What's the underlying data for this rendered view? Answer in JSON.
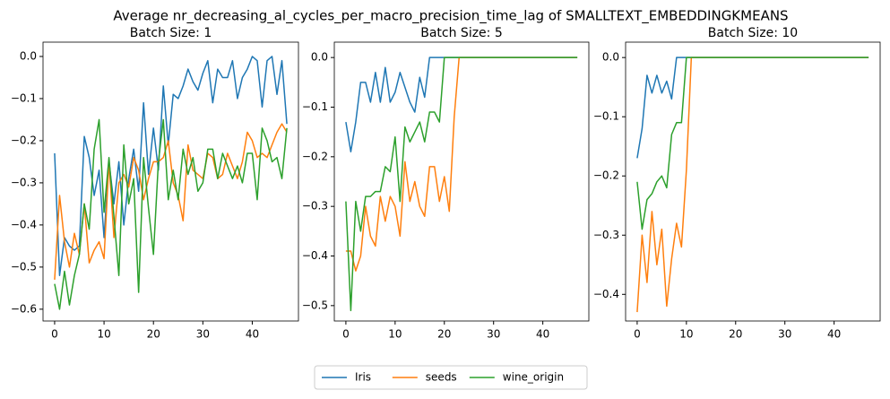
{
  "title": "Average nr_decreasing_al_cycles_per_macro_precision_time_lag of SMALLTEXT_EMBEDDINGKMEANS",
  "legend_position": "lower center",
  "chart_data": [
    {
      "type": "line",
      "title": "Batch Size: 1",
      "x": [
        0,
        1,
        2,
        3,
        4,
        5,
        6,
        7,
        8,
        9,
        10,
        11,
        12,
        13,
        14,
        15,
        16,
        17,
        18,
        19,
        20,
        21,
        22,
        23,
        24,
        25,
        26,
        27,
        28,
        29,
        30,
        31,
        32,
        33,
        34,
        35,
        36,
        37,
        38,
        39,
        40,
        41,
        42,
        43,
        44,
        45,
        46,
        47
      ],
      "xlim": [
        -2.35,
        49.35
      ],
      "xticks": [
        0,
        10,
        20,
        30,
        40
      ],
      "ylim": [
        -0.628,
        0.034
      ],
      "yticks": [
        {
          "value": -0.6,
          "label": "−0.6"
        },
        {
          "value": -0.5,
          "label": "−0.5"
        },
        {
          "value": -0.4,
          "label": "−0.4"
        },
        {
          "value": -0.3,
          "label": "−0.3"
        },
        {
          "value": -0.2,
          "label": "−0.2"
        },
        {
          "value": -0.1,
          "label": "−0.1"
        },
        {
          "value": 0,
          "label": "0.0"
        }
      ],
      "series": [
        {
          "name": "Iris",
          "color": "#1f77b4",
          "values": [
            -0.23,
            -0.52,
            -0.43,
            -0.45,
            -0.46,
            -0.45,
            -0.19,
            -0.24,
            -0.33,
            -0.27,
            -0.43,
            -0.25,
            -0.35,
            -0.25,
            -0.4,
            -0.29,
            -0.22,
            -0.32,
            -0.11,
            -0.28,
            -0.17,
            -0.27,
            -0.07,
            -0.21,
            -0.09,
            -0.1,
            -0.07,
            -0.03,
            -0.06,
            -0.08,
            -0.04,
            -0.01,
            -0.11,
            -0.03,
            -0.05,
            -0.05,
            -0.01,
            -0.1,
            -0.05,
            -0.03,
            0.0,
            -0.01,
            -0.12,
            -0.01,
            0.0,
            -0.09,
            -0.01,
            -0.16
          ]
        },
        {
          "name": "seeds",
          "color": "#ff7f0e",
          "values": [
            -0.53,
            -0.33,
            -0.44,
            -0.5,
            -0.42,
            -0.47,
            -0.35,
            -0.49,
            -0.46,
            -0.44,
            -0.48,
            -0.25,
            -0.43,
            -0.3,
            -0.28,
            -0.31,
            -0.24,
            -0.27,
            -0.34,
            -0.29,
            -0.25,
            -0.25,
            -0.24,
            -0.2,
            -0.3,
            -0.33,
            -0.39,
            -0.21,
            -0.27,
            -0.28,
            -0.29,
            -0.23,
            -0.24,
            -0.29,
            -0.28,
            -0.23,
            -0.26,
            -0.29,
            -0.25,
            -0.18,
            -0.2,
            -0.24,
            -0.23,
            -0.24,
            -0.21,
            -0.18,
            -0.16,
            -0.18
          ]
        },
        {
          "name": "wine_origin",
          "color": "#2ca02c",
          "values": [
            -0.54,
            -0.6,
            -0.51,
            -0.59,
            -0.52,
            -0.47,
            -0.35,
            -0.41,
            -0.22,
            -0.15,
            -0.37,
            -0.24,
            -0.38,
            -0.52,
            -0.21,
            -0.35,
            -0.29,
            -0.56,
            -0.24,
            -0.36,
            -0.47,
            -0.25,
            -0.15,
            -0.34,
            -0.27,
            -0.34,
            -0.22,
            -0.28,
            -0.24,
            -0.32,
            -0.3,
            -0.22,
            -0.22,
            -0.29,
            -0.23,
            -0.26,
            -0.29,
            -0.26,
            -0.3,
            -0.23,
            -0.23,
            -0.34,
            -0.17,
            -0.2,
            -0.25,
            -0.24,
            -0.29,
            -0.17
          ]
        }
      ]
    },
    {
      "type": "line",
      "title": "Batch Size: 5",
      "x": [
        0,
        1,
        2,
        3,
        4,
        5,
        6,
        7,
        8,
        9,
        10,
        11,
        12,
        13,
        14,
        15,
        16,
        17,
        18,
        19,
        20,
        21,
        22,
        23,
        24,
        25,
        26,
        27,
        28,
        29,
        30,
        31,
        32,
        33,
        34,
        35,
        36,
        37,
        38,
        39,
        40,
        41,
        42,
        43,
        44,
        45,
        46,
        47
      ],
      "xlim": [
        -2.35,
        49.35
      ],
      "xticks": [
        0,
        10,
        20,
        30,
        40
      ],
      "ylim": [
        -0.531,
        0.031
      ],
      "yticks": [
        {
          "value": -0.5,
          "label": "−0.5"
        },
        {
          "value": -0.4,
          "label": "−0.4"
        },
        {
          "value": -0.3,
          "label": "−0.3"
        },
        {
          "value": -0.2,
          "label": "−0.2"
        },
        {
          "value": -0.1,
          "label": "−0.1"
        },
        {
          "value": 0,
          "label": "0.0"
        }
      ],
      "series": [
        {
          "name": "Iris",
          "color": "#1f77b4",
          "values": [
            -0.13,
            -0.19,
            -0.13,
            -0.05,
            -0.05,
            -0.09,
            -0.03,
            -0.09,
            -0.02,
            -0.09,
            -0.07,
            -0.03,
            -0.06,
            -0.09,
            -0.11,
            -0.04,
            -0.08,
            0,
            0,
            0,
            0,
            0,
            0,
            0,
            0,
            0,
            0,
            0,
            0,
            0,
            0,
            0,
            0,
            0,
            0,
            0,
            0,
            0,
            0,
            0,
            0,
            0,
            0,
            0,
            0,
            0,
            0,
            0
          ]
        },
        {
          "name": "seeds",
          "color": "#ff7f0e",
          "values": [
            -0.39,
            -0.39,
            -0.43,
            -0.4,
            -0.3,
            -0.36,
            -0.38,
            -0.28,
            -0.33,
            -0.28,
            -0.3,
            -0.36,
            -0.21,
            -0.29,
            -0.25,
            -0.3,
            -0.32,
            -0.22,
            -0.22,
            -0.29,
            -0.24,
            -0.31,
            -0.12,
            0,
            0,
            0,
            0,
            0,
            0,
            0,
            0,
            0,
            0,
            0,
            0,
            0,
            0,
            0,
            0,
            0,
            0,
            0,
            0,
            0,
            0,
            0,
            0,
            0
          ]
        },
        {
          "name": "wine_origin",
          "color": "#2ca02c",
          "values": [
            -0.29,
            -0.51,
            -0.29,
            -0.35,
            -0.28,
            -0.28,
            -0.27,
            -0.27,
            -0.22,
            -0.23,
            -0.16,
            -0.29,
            -0.14,
            -0.17,
            -0.15,
            -0.13,
            -0.17,
            -0.11,
            -0.11,
            -0.13,
            0,
            0,
            0,
            0,
            0,
            0,
            0,
            0,
            0,
            0,
            0,
            0,
            0,
            0,
            0,
            0,
            0,
            0,
            0,
            0,
            0,
            0,
            0,
            0,
            0,
            0,
            0,
            0
          ]
        }
      ]
    },
    {
      "type": "line",
      "title": "Batch Size: 10",
      "x": [
        0,
        1,
        2,
        3,
        4,
        5,
        6,
        7,
        8,
        9,
        10,
        11,
        12,
        13,
        14,
        15,
        16,
        17,
        18,
        19,
        20,
        21,
        22,
        23,
        24,
        25,
        26,
        27,
        28,
        29,
        30,
        31,
        32,
        33,
        34,
        35,
        36,
        37,
        38,
        39,
        40,
        41,
        42,
        43,
        44,
        45,
        46,
        47
      ],
      "xlim": [
        -2.35,
        49.35
      ],
      "xticks": [
        0,
        10,
        20,
        30,
        40
      ],
      "ylim": [
        -0.445,
        0.026
      ],
      "yticks": [
        {
          "value": -0.4,
          "label": "−0.4"
        },
        {
          "value": -0.3,
          "label": "−0.3"
        },
        {
          "value": -0.2,
          "label": "−0.2"
        },
        {
          "value": -0.1,
          "label": "−0.1"
        },
        {
          "value": 0,
          "label": "0.0"
        }
      ],
      "series": [
        {
          "name": "Iris",
          "color": "#1f77b4",
          "values": [
            -0.17,
            -0.12,
            -0.03,
            -0.06,
            -0.03,
            -0.06,
            -0.04,
            -0.07,
            0,
            0,
            0,
            0,
            0,
            0,
            0,
            0,
            0,
            0,
            0,
            0,
            0,
            0,
            0,
            0,
            0,
            0,
            0,
            0,
            0,
            0,
            0,
            0,
            0,
            0,
            0,
            0,
            0,
            0,
            0,
            0,
            0,
            0,
            0,
            0,
            0,
            0,
            0,
            0
          ]
        },
        {
          "name": "seeds",
          "color": "#ff7f0e",
          "values": [
            -0.43,
            -0.3,
            -0.38,
            -0.26,
            -0.35,
            -0.29,
            -0.42,
            -0.34,
            -0.28,
            -0.32,
            -0.19,
            0,
            0,
            0,
            0,
            0,
            0,
            0,
            0,
            0,
            0,
            0,
            0,
            0,
            0,
            0,
            0,
            0,
            0,
            0,
            0,
            0,
            0,
            0,
            0,
            0,
            0,
            0,
            0,
            0,
            0,
            0,
            0,
            0,
            0,
            0,
            0,
            0
          ]
        },
        {
          "name": "wine_origin",
          "color": "#2ca02c",
          "values": [
            -0.21,
            -0.29,
            -0.24,
            -0.23,
            -0.21,
            -0.2,
            -0.22,
            -0.13,
            -0.11,
            -0.11,
            0,
            0,
            0,
            0,
            0,
            0,
            0,
            0,
            0,
            0,
            0,
            0,
            0,
            0,
            0,
            0,
            0,
            0,
            0,
            0,
            0,
            0,
            0,
            0,
            0,
            0,
            0,
            0,
            0,
            0,
            0,
            0,
            0,
            0,
            0,
            0,
            0,
            0
          ]
        }
      ]
    }
  ]
}
